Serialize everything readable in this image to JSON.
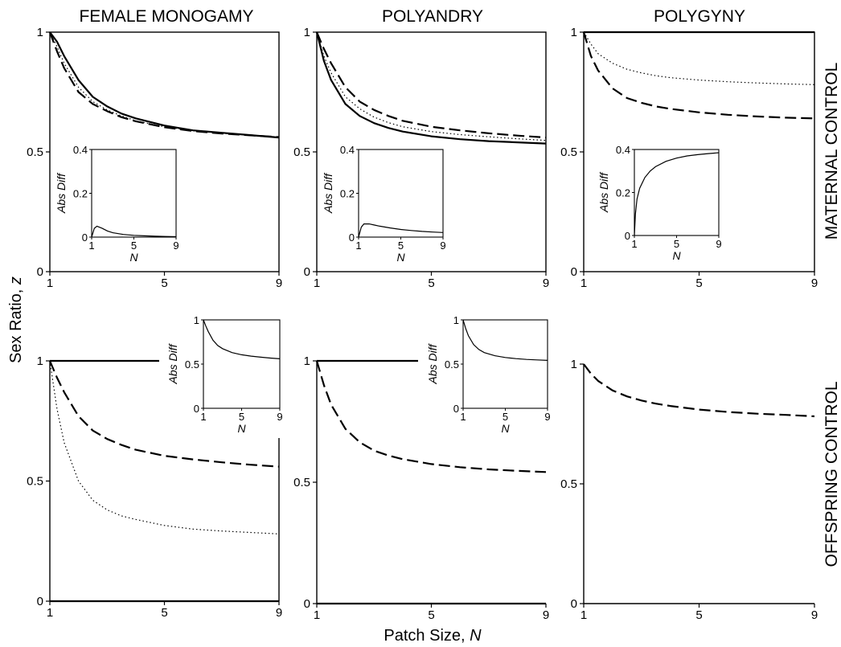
{
  "figure": {
    "col_titles": [
      "FEMALE MONOGAMY",
      "POLYANDRY",
      "POLYGYNY"
    ],
    "row_titles": [
      "MATERNAL CONTROL",
      "OFFSPRING CONTROL"
    ],
    "ylabel": "Sex Ratio, z",
    "xlabel": "Patch Size, N"
  },
  "chart_data": [
    {
      "type": "line",
      "panel": "maternal-female-monogamy",
      "xlim": [
        1,
        9
      ],
      "ylim": [
        0,
        1
      ],
      "xticks": [
        1,
        5,
        9
      ],
      "yticks": [
        0,
        0.5,
        1
      ],
      "x": [
        1,
        1.25,
        1.5,
        2,
        2.5,
        3,
        3.5,
        4,
        5,
        6,
        7,
        8,
        9
      ],
      "series": [
        {
          "style": "solid",
          "values": [
            1,
            0.96,
            0.9,
            0.8,
            0.73,
            0.69,
            0.66,
            0.64,
            0.61,
            0.59,
            0.58,
            0.57,
            0.56
          ]
        },
        {
          "style": "dotted",
          "values": [
            1,
            0.94,
            0.87,
            0.77,
            0.71,
            0.675,
            0.65,
            0.63,
            0.605,
            0.588,
            0.578,
            0.57,
            0.562
          ]
        },
        {
          "style": "dashed",
          "values": [
            1,
            0.92,
            0.85,
            0.75,
            0.7,
            0.67,
            0.645,
            0.628,
            0.603,
            0.587,
            0.577,
            0.569,
            0.562
          ]
        }
      ],
      "inset": {
        "xlim": [
          1,
          9
        ],
        "ylim": [
          0,
          0.4
        ],
        "xticks": [
          1,
          5,
          9
        ],
        "yticks": [
          0,
          0.2,
          0.4
        ],
        "xlabel": "N",
        "ylabel": "Abs Diff",
        "x": [
          1,
          1.25,
          1.5,
          2,
          2.5,
          3,
          4,
          5,
          6,
          7,
          8,
          9
        ],
        "values": [
          0,
          0.04,
          0.05,
          0.04,
          0.028,
          0.02,
          0.012,
          0.008,
          0.006,
          0.004,
          0.003,
          0.002
        ]
      }
    },
    {
      "type": "line",
      "panel": "maternal-polyandry",
      "xlim": [
        1,
        9
      ],
      "ylim": [
        0,
        1
      ],
      "xticks": [
        1,
        5,
        9
      ],
      "yticks": [
        0,
        0.5,
        1
      ],
      "x": [
        1,
        1.25,
        1.5,
        2,
        2.5,
        3,
        3.5,
        4,
        5,
        6,
        7,
        8,
        9
      ],
      "series": [
        {
          "style": "solid",
          "values": [
            1,
            0.88,
            0.8,
            0.7,
            0.65,
            0.62,
            0.6,
            0.585,
            0.565,
            0.553,
            0.545,
            0.54,
            0.535
          ]
        },
        {
          "style": "dotted",
          "values": [
            1,
            0.9,
            0.83,
            0.73,
            0.68,
            0.645,
            0.622,
            0.605,
            0.585,
            0.572,
            0.563,
            0.555,
            0.548
          ]
        },
        {
          "style": "dashed",
          "values": [
            1,
            0.93,
            0.87,
            0.77,
            0.71,
            0.675,
            0.65,
            0.63,
            0.605,
            0.59,
            0.578,
            0.568,
            0.56
          ]
        }
      ],
      "inset": {
        "xlim": [
          1,
          9
        ],
        "ylim": [
          0,
          0.4
        ],
        "xticks": [
          1,
          5,
          9
        ],
        "yticks": [
          0,
          0.2,
          0.4
        ],
        "xlabel": "N",
        "ylabel": "Abs Diff",
        "x": [
          1,
          1.25,
          1.5,
          2,
          2.5,
          3,
          4,
          5,
          6,
          7,
          8,
          9
        ],
        "values": [
          0,
          0.045,
          0.06,
          0.06,
          0.055,
          0.05,
          0.042,
          0.035,
          0.03,
          0.026,
          0.023,
          0.021
        ]
      }
    },
    {
      "type": "line",
      "panel": "maternal-polygyny",
      "xlim": [
        1,
        9
      ],
      "ylim": [
        0,
        1
      ],
      "xticks": [
        1,
        5,
        9
      ],
      "yticks": [
        0,
        0.5,
        1
      ],
      "x": [
        1,
        1.25,
        1.5,
        2,
        2.5,
        3,
        3.5,
        4,
        5,
        6,
        7,
        8,
        9
      ],
      "series": [
        {
          "style": "solid",
          "values": [
            1,
            1,
            1,
            1,
            1,
            1,
            1,
            1,
            1,
            1,
            1,
            1,
            1
          ]
        },
        {
          "style": "dotted",
          "values": [
            1,
            0.95,
            0.91,
            0.87,
            0.845,
            0.83,
            0.818,
            0.81,
            0.8,
            0.793,
            0.788,
            0.784,
            0.781
          ]
        },
        {
          "style": "dashed",
          "values": [
            1,
            0.9,
            0.84,
            0.765,
            0.725,
            0.705,
            0.69,
            0.68,
            0.665,
            0.655,
            0.648,
            0.643,
            0.64
          ]
        }
      ],
      "inset": {
        "xlim": [
          1,
          9
        ],
        "ylim": [
          0,
          0.4
        ],
        "xticks": [
          1,
          5,
          9
        ],
        "yticks": [
          0,
          0.2,
          0.4
        ],
        "xlabel": "N",
        "ylabel": "Abs Diff",
        "x": [
          1,
          1.1,
          1.25,
          1.5,
          2,
          2.5,
          3,
          4,
          5,
          6,
          7,
          8,
          9
        ],
        "values": [
          0,
          0.1,
          0.17,
          0.22,
          0.27,
          0.3,
          0.32,
          0.345,
          0.36,
          0.37,
          0.376,
          0.381,
          0.385
        ]
      }
    },
    {
      "type": "line",
      "panel": "offspring-female-monogamy",
      "xlim": [
        1,
        9
      ],
      "ylim": [
        0,
        1
      ],
      "xticks": [
        1,
        5,
        9
      ],
      "yticks": [
        0,
        0.5,
        1
      ],
      "x": [
        1,
        1.25,
        1.5,
        2,
        2.5,
        3,
        3.5,
        4,
        5,
        6,
        7,
        8,
        9
      ],
      "series": [
        {
          "style": "solid",
          "values": [
            1,
            1,
            1,
            1,
            1,
            1,
            1,
            1,
            1,
            1,
            1,
            1,
            1
          ]
        },
        {
          "style": "solid",
          "values": [
            0,
            0,
            0,
            0,
            0,
            0,
            0,
            0,
            0,
            0,
            0,
            0,
            0
          ]
        },
        {
          "style": "dotted",
          "values": [
            1,
            0.8,
            0.66,
            0.5,
            0.42,
            0.38,
            0.355,
            0.34,
            0.315,
            0.3,
            0.292,
            0.286,
            0.28
          ]
        },
        {
          "style": "dashed",
          "values": [
            1,
            0.93,
            0.87,
            0.77,
            0.71,
            0.675,
            0.65,
            0.63,
            0.605,
            0.59,
            0.578,
            0.568,
            0.56
          ]
        }
      ],
      "inset": {
        "xlim": [
          1,
          9
        ],
        "ylim": [
          0,
          1
        ],
        "xticks": [
          1,
          5,
          9
        ],
        "yticks": [
          0,
          0.5,
          1
        ],
        "xlabel": "N",
        "ylabel": "Abs Diff",
        "x": [
          1,
          1.25,
          1.5,
          2,
          2.5,
          3,
          4,
          5,
          6,
          7,
          8,
          9
        ],
        "values": [
          1,
          0.93,
          0.87,
          0.77,
          0.71,
          0.675,
          0.63,
          0.605,
          0.59,
          0.578,
          0.568,
          0.56
        ]
      }
    },
    {
      "type": "line",
      "panel": "offspring-polyandry",
      "xlim": [
        1,
        9
      ],
      "ylim": [
        0,
        1
      ],
      "xticks": [
        1,
        5,
        9
      ],
      "yticks": [
        0,
        0.5,
        1
      ],
      "x": [
        1,
        1.25,
        1.5,
        2,
        2.5,
        3,
        3.5,
        4,
        5,
        6,
        7,
        8,
        9
      ],
      "series": [
        {
          "style": "solid",
          "values": [
            1,
            1,
            1,
            1,
            1,
            1,
            1,
            1,
            1,
            1,
            1,
            1,
            1
          ]
        },
        {
          "style": "solid",
          "values": [
            0,
            0,
            0,
            0,
            0,
            0,
            0,
            0,
            0,
            0,
            0,
            0,
            0
          ]
        },
        {
          "style": "dashed",
          "values": [
            1,
            0.9,
            0.82,
            0.72,
            0.665,
            0.63,
            0.61,
            0.595,
            0.575,
            0.562,
            0.553,
            0.547,
            0.542
          ]
        }
      ],
      "inset": {
        "xlim": [
          1,
          9
        ],
        "ylim": [
          0,
          1
        ],
        "xticks": [
          1,
          5,
          9
        ],
        "yticks": [
          0,
          0.5,
          1
        ],
        "xlabel": "N",
        "ylabel": "Abs Diff",
        "x": [
          1,
          1.25,
          1.5,
          2,
          2.5,
          3,
          4,
          5,
          6,
          7,
          8,
          9
        ],
        "values": [
          1,
          0.9,
          0.82,
          0.72,
          0.665,
          0.63,
          0.595,
          0.575,
          0.562,
          0.553,
          0.547,
          0.542
        ]
      }
    },
    {
      "type": "line",
      "panel": "offspring-polygyny",
      "xlim": [
        1,
        9
      ],
      "ylim": [
        0,
        1
      ],
      "xticks": [
        1,
        5,
        9
      ],
      "yticks": [
        0,
        0.5,
        1
      ],
      "x": [
        1,
        1.25,
        1.5,
        2,
        2.5,
        3,
        3.5,
        4,
        5,
        6,
        7,
        8,
        9
      ],
      "series": [
        {
          "style": "dashed",
          "values": [
            1,
            0.96,
            0.93,
            0.89,
            0.865,
            0.848,
            0.835,
            0.825,
            0.81,
            0.8,
            0.793,
            0.788,
            0.782
          ]
        }
      ]
    }
  ]
}
